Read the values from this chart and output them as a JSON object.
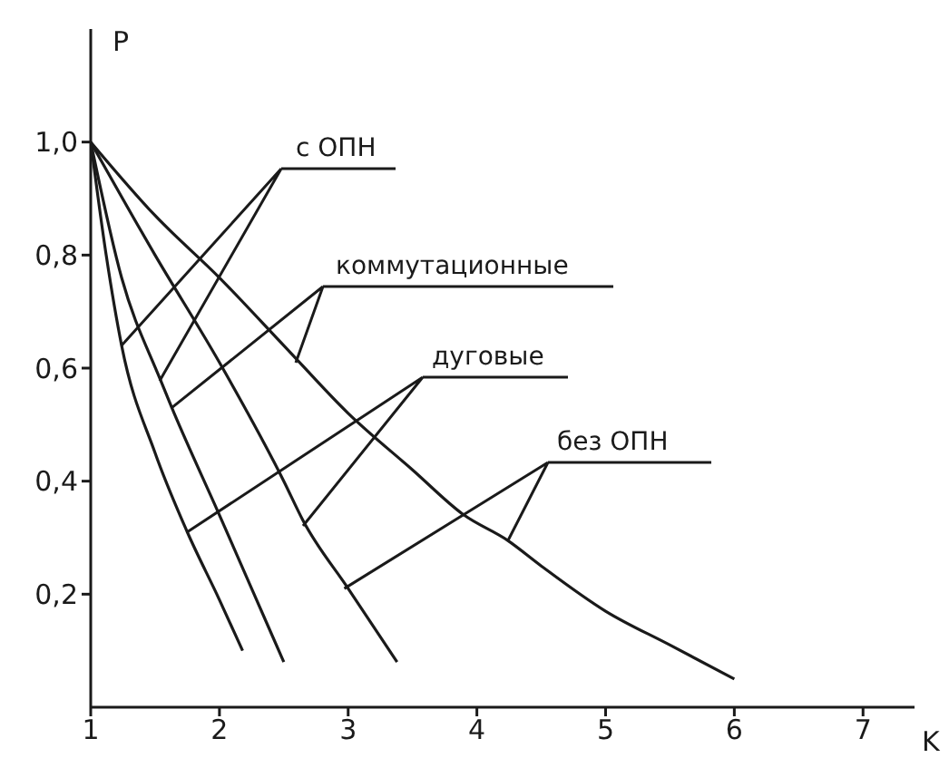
{
  "chart_data": {
    "type": "line",
    "xlabel": "K",
    "ylabel": "P",
    "xlim": [
      1,
      7.4
    ],
    "ylim": [
      0,
      1.2
    ],
    "xticks": [
      1,
      2,
      3,
      4,
      5,
      6,
      7
    ],
    "yticks": [
      {
        "value": 0.2,
        "label": "0,2"
      },
      {
        "value": 0.4,
        "label": "0,4"
      },
      {
        "value": 0.6,
        "label": "0,6"
      },
      {
        "value": 0.8,
        "label": "0,8"
      },
      {
        "value": 1.0,
        "label": "1,0"
      }
    ],
    "marker": "none",
    "line_style": "solid",
    "series": [
      {
        "color": "#1a1a1a",
        "x": [
          1,
          1.12,
          1.24,
          1.5,
          1.75,
          2,
          2.18
        ],
        "values": [
          1,
          0.8,
          0.64,
          0.45,
          0.31,
          0.19,
          0.1
        ]
      },
      {
        "color": "#1a1a1a",
        "x": [
          1,
          1.24,
          1.54,
          1.63,
          2,
          2.25,
          2.5
        ],
        "values": [
          1,
          0.76,
          0.58,
          0.53,
          0.34,
          0.21,
          0.08
        ]
      },
      {
        "color": "#1a1a1a",
        "x": [
          1,
          1.5,
          2,
          2.5,
          2.65,
          3,
          3.38
        ],
        "values": [
          1,
          0.8,
          0.61,
          0.4,
          0.33,
          0.21,
          0.08
        ]
      },
      {
        "color": "#1a1a1a",
        "x": [
          1,
          1.5,
          2,
          2.5,
          3,
          3.5,
          3.9,
          4.24,
          4.5,
          5,
          5.5,
          6
        ],
        "values": [
          1,
          0.87,
          0.76,
          0.64,
          0.52,
          0.42,
          0.34,
          0.295,
          0.25,
          0.17,
          0.11,
          0.05
        ]
      }
    ],
    "annotations": [
      {
        "text": "с ОПН",
        "x": 1.24,
        "y": 0.64
      },
      {
        "text": "коммутационные",
        "x": 1.63,
        "y": 0.53
      },
      {
        "text": "дуговые",
        "x": 1.75,
        "y": 0.31
      },
      {
        "text": "без ОПН",
        "x": 2.97,
        "y": 0.21
      }
    ]
  }
}
